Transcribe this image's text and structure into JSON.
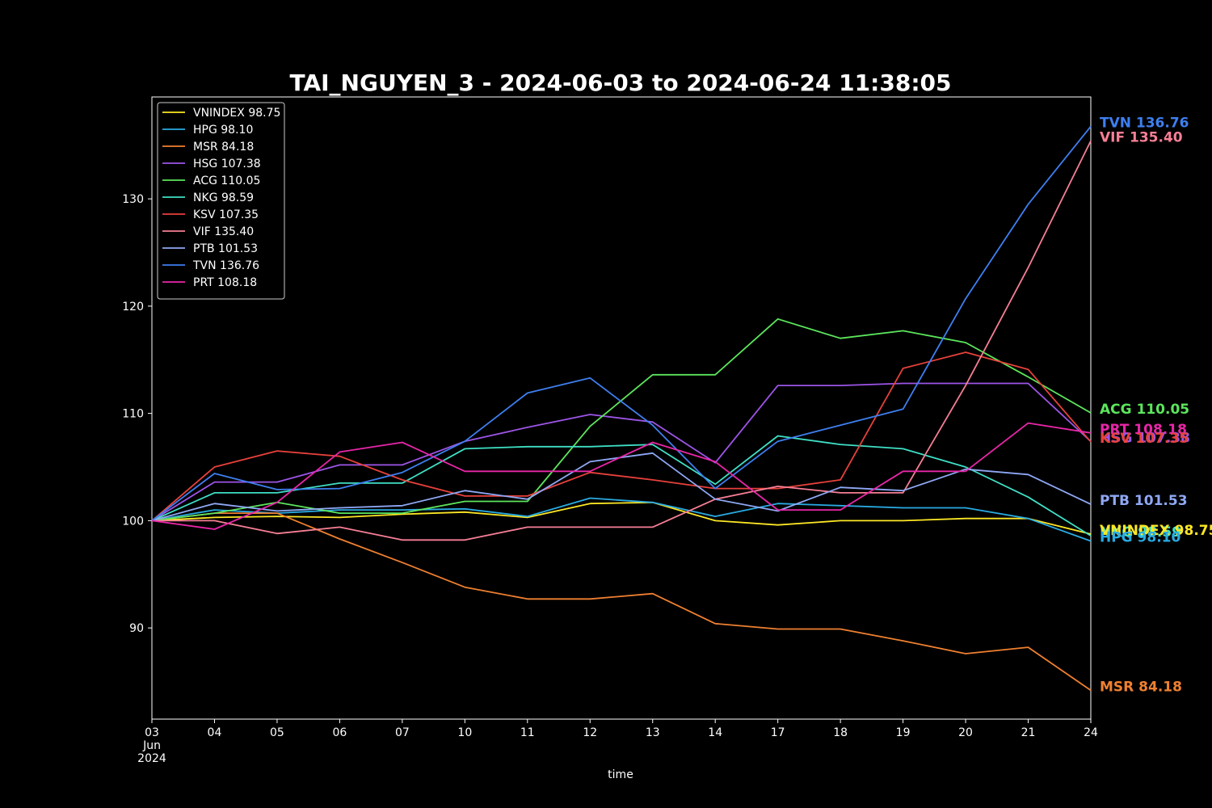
{
  "chart_data": {
    "type": "line",
    "title": "TAI_NGUYEN_3 - 2024-06-03 to 2024-06-24 11:38:05",
    "xlabel": "time",
    "ylabel": "",
    "x": [
      "2024-06-03",
      "2024-06-04",
      "2024-06-05",
      "2024-06-06",
      "2024-06-07",
      "2024-06-10",
      "2024-06-11",
      "2024-06-12",
      "2024-06-13",
      "2024-06-14",
      "2024-06-17",
      "2024-06-18",
      "2024-06-19",
      "2024-06-20",
      "2024-06-21",
      "2024-06-24"
    ],
    "x_tick_labels": [
      "03",
      "04",
      "05",
      "06",
      "07",
      "10",
      "11",
      "12",
      "13",
      "14",
      "17",
      "18",
      "19",
      "20",
      "21",
      "24"
    ],
    "x_tick_sublabels": [
      "Jun",
      "2024"
    ],
    "ylim": [
      81.5,
      139.5
    ],
    "y_ticks": [
      90,
      100,
      110,
      120,
      130
    ],
    "grid": false,
    "legend_position": "top-left",
    "series": [
      {
        "name": "VNINDEX",
        "label": "VNINDEX 98.75",
        "color": "#fde725",
        "values": [
          100,
          100.3,
          100.4,
          100.3,
          100.6,
          100.8,
          100.3,
          101.6,
          101.7,
          100.0,
          99.6,
          100.0,
          100.0,
          100.2,
          100.2,
          98.75
        ]
      },
      {
        "name": "HPG",
        "label": "HPG 98.10",
        "color": "#29abe2",
        "values": [
          100,
          101.0,
          100.7,
          101.0,
          101.0,
          101.1,
          100.4,
          102.1,
          101.7,
          100.4,
          101.6,
          101.4,
          101.2,
          101.2,
          100.2,
          98.1
        ]
      },
      {
        "name": "MSR",
        "label": "MSR 84.18",
        "color": "#f08030",
        "values": [
          100,
          100.7,
          100.7,
          98.3,
          96.1,
          93.8,
          92.7,
          92.7,
          93.2,
          90.4,
          89.9,
          89.9,
          88.8,
          87.6,
          88.2,
          84.18
        ]
      },
      {
        "name": "HSG",
        "label": "HSG 107.38",
        "color": "#9d55e8",
        "values": [
          100,
          103.6,
          103.6,
          105.2,
          105.2,
          107.4,
          108.7,
          109.9,
          109.2,
          105.4,
          112.6,
          112.6,
          112.8,
          112.8,
          112.8,
          107.38
        ]
      },
      {
        "name": "ACG",
        "label": "ACG 110.05",
        "color": "#5ce65c",
        "values": [
          100,
          100.7,
          101.7,
          100.7,
          100.7,
          101.8,
          101.8,
          108.8,
          113.6,
          113.6,
          118.8,
          117.0,
          117.7,
          116.6,
          113.4,
          110.05
        ]
      },
      {
        "name": "NKG",
        "label": "NKG 98.59",
        "color": "#3fe0c5",
        "values": [
          100,
          102.6,
          102.6,
          103.5,
          103.5,
          106.7,
          106.9,
          106.9,
          107.1,
          103.4,
          107.9,
          107.1,
          106.7,
          105.0,
          102.2,
          98.59
        ]
      },
      {
        "name": "KSV",
        "label": "KSV 107.35",
        "color": "#e8413c",
        "values": [
          100,
          105.0,
          106.5,
          106.0,
          103.8,
          102.3,
          102.3,
          104.5,
          103.8,
          103.0,
          103.0,
          103.8,
          114.2,
          115.7,
          114.1,
          107.35
        ]
      },
      {
        "name": "VIF",
        "label": "VIF 135.40",
        "color": "#f77f95",
        "values": [
          100,
          100.0,
          98.8,
          99.4,
          98.2,
          98.2,
          99.4,
          99.4,
          99.4,
          102.0,
          103.2,
          102.6,
          102.6,
          112.6,
          123.6,
          135.4
        ]
      },
      {
        "name": "PTB",
        "label": "PTB 101.53",
        "color": "#8fa8f5",
        "values": [
          100,
          101.6,
          100.9,
          101.2,
          101.4,
          102.8,
          102.0,
          105.5,
          106.3,
          102.0,
          100.9,
          103.1,
          102.8,
          104.8,
          104.3,
          101.53
        ]
      },
      {
        "name": "TVN",
        "label": "TVN 136.76",
        "color": "#3e7ff0",
        "values": [
          100,
          104.4,
          102.9,
          103.0,
          104.5,
          107.4,
          111.9,
          113.3,
          108.9,
          103.0,
          107.4,
          108.9,
          110.4,
          120.7,
          129.5,
          136.76
        ]
      },
      {
        "name": "PRT",
        "label": "PRT 108.18",
        "color": "#e826a8",
        "values": [
          100,
          99.2,
          101.7,
          106.4,
          107.3,
          104.6,
          104.6,
          104.6,
          107.3,
          105.5,
          101.0,
          101.0,
          104.6,
          104.6,
          109.1,
          108.18
        ]
      }
    ],
    "end_labels": [
      {
        "series": "TVN",
        "text": "TVN 136.76"
      },
      {
        "series": "VIF",
        "text": "VIF 135.40"
      },
      {
        "series": "ACG",
        "text": "ACG 110.05"
      },
      {
        "series": "PRT",
        "text": "PRT 108.18"
      },
      {
        "series": "HSG",
        "text": "HSG 107.38"
      },
      {
        "series": "KSV",
        "text": "KSV 107.35"
      },
      {
        "series": "PTB",
        "text": "PTB 101.53"
      },
      {
        "series": "NKG",
        "text": "NKG 98.59"
      },
      {
        "series": "VNINDEX",
        "text": "VNINDEX 98.75"
      },
      {
        "series": "HPG",
        "text": "HPG 98.10"
      },
      {
        "series": "MSR",
        "text": "MSR 84.18"
      }
    ]
  }
}
